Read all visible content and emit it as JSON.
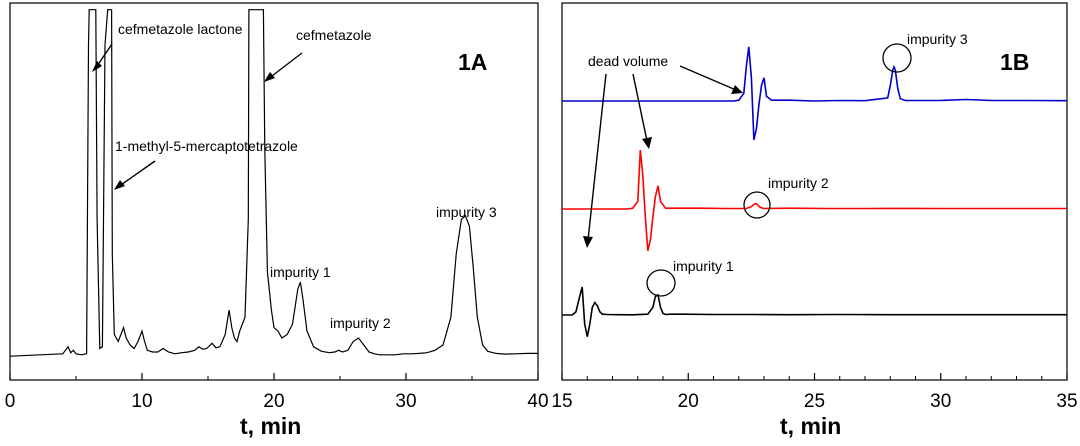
{
  "chart_data": [
    {
      "type": "line",
      "panel": "1A",
      "title": "1A",
      "xlabel": "t, min",
      "ylabel": "",
      "xlim": [
        0,
        40
      ],
      "xticks": [
        "0",
        "10",
        "20",
        "30",
        "40"
      ],
      "series": [
        {
          "name": "chromatogram 1A",
          "color": "#000000",
          "x": [
            0,
            4.0,
            4.4,
            4.6,
            4.8,
            5.0,
            5.4,
            5.8,
            5.95,
            6.0,
            6.5,
            6.6,
            6.8,
            7.0,
            7.2,
            7.4,
            7.45,
            7.5,
            7.6,
            7.7,
            7.75,
            7.9,
            8.2,
            8.4,
            8.6,
            8.8,
            9.1,
            9.4,
            9.7,
            10.0,
            10.2,
            10.4,
            10.8,
            11.2,
            11.6,
            12.0,
            12.5,
            13.0,
            13.5,
            14.0,
            14.3,
            14.6,
            14.9,
            15.3,
            15.6,
            15.9,
            16.3,
            16.6,
            16.8,
            17.0,
            17.2,
            17.4,
            17.8,
            18.05,
            18.1,
            18.2,
            19.0,
            19.2,
            19.3,
            19.5,
            19.8,
            20.0,
            20.3,
            20.6,
            21.0,
            21.4,
            21.8,
            22.0,
            22.2,
            22.5,
            23.0,
            23.6,
            24.2,
            24.6,
            24.9,
            25.2,
            25.6,
            26.0,
            26.4,
            26.8,
            27.2,
            27.6,
            28.0,
            28.6,
            29.2,
            29.8,
            30.4,
            31.0,
            31.6,
            32.2,
            32.8,
            33.4,
            33.8,
            34.2,
            34.5,
            34.8,
            35.1,
            35.4,
            35.8,
            36.2,
            36.8,
            37.5,
            38.3,
            39.2,
            40.0
          ],
          "values": [
            0.8,
            1.5,
            3.5,
            1.8,
            2.5,
            1.5,
            1.2,
            1.5,
            90,
            100,
            100,
            40,
            3,
            3.5,
            90,
            100,
            100,
            100,
            100,
            100,
            30,
            7,
            5,
            7,
            9,
            6,
            4,
            3,
            5,
            8,
            5,
            2.5,
            2,
            2,
            3,
            2,
            1.5,
            1.8,
            2,
            2.5,
            3.5,
            2.8,
            3,
            4.5,
            3.2,
            3.5,
            7,
            14,
            9,
            6,
            5,
            8,
            12,
            40,
            100,
            100,
            100,
            100,
            60,
            25,
            14,
            9,
            8,
            6,
            7,
            10,
            20,
            22,
            17,
            8,
            3.5,
            2.2,
            1.8,
            2,
            2.5,
            2,
            2.5,
            5,
            6,
            4,
            2,
            1.5,
            1.2,
            1.2,
            1.2,
            1.5,
            1.5,
            1.6,
            1.8,
            2.5,
            4,
            12,
            30,
            40,
            41,
            38,
            26,
            12,
            4,
            2.2,
            1.6,
            1.4,
            1.5,
            1.6,
            1.6
          ]
        }
      ],
      "annotations": [
        {
          "text": "cefmetazole lactone",
          "x": 6.0
        },
        {
          "text": "1-methyl-5-mercaptotetrazole",
          "x": 7.5
        },
        {
          "text": "cefmetazole",
          "x": 19.0
        },
        {
          "text": "impurity 1",
          "x": 21.8
        },
        {
          "text": "impurity 2",
          "x": 26.0
        },
        {
          "text": "impurity 3",
          "x": 34.8
        }
      ]
    },
    {
      "type": "line",
      "panel": "1B",
      "title": "1B",
      "xlabel": "t, min",
      "ylabel": "",
      "xlim": [
        15,
        35
      ],
      "xticks": [
        "15",
        "20",
        "25",
        "30",
        "35"
      ],
      "series": [
        {
          "name": "blue trace",
          "color": "#0000cc",
          "offset": 70,
          "x": [
            15.0,
            21.8,
            22.0,
            22.2,
            22.3,
            22.4,
            22.5,
            22.6,
            22.7,
            22.8,
            22.9,
            23.0,
            23.1,
            23.3,
            24.0,
            25.0,
            26.0,
            27.0,
            27.9,
            28.0,
            28.1,
            28.15,
            28.2,
            28.3,
            28.4,
            28.6,
            30.0,
            31.0,
            32.0,
            33.5,
            35.0
          ],
          "values": [
            0,
            0,
            0.5,
            5,
            22,
            35,
            15,
            -25,
            -18,
            -2,
            10,
            15,
            3,
            0.5,
            0.5,
            0,
            0.3,
            0.2,
            2,
            10,
            20,
            22,
            20,
            8,
            1.5,
            0.3,
            0.4,
            1,
            0.3,
            0.3,
            0.2
          ]
        },
        {
          "name": "red trace",
          "color": "#ff0000",
          "offset": 38,
          "x": [
            15.0,
            17.6,
            17.8,
            18.0,
            18.1,
            18.2,
            18.3,
            18.4,
            18.5,
            18.6,
            18.7,
            18.8,
            18.9,
            19.1,
            19.5,
            20.5,
            21.5,
            22.3,
            22.5,
            22.6,
            22.7,
            22.85,
            23.0,
            24.0,
            25.5,
            27.0,
            28.5,
            30.0,
            32.0,
            35.0
          ],
          "values": [
            0,
            0,
            0.5,
            5,
            38,
            22,
            -5,
            -27,
            -20,
            -5,
            8,
            15,
            5,
            0.5,
            0.5,
            0.5,
            0.3,
            0.3,
            1.5,
            3,
            3.5,
            1,
            0.3,
            0.5,
            0.3,
            0.3,
            0.4,
            0.3,
            0.3,
            0.3
          ]
        },
        {
          "name": "black trace",
          "color": "#000000",
          "offset": 7,
          "x": [
            15.0,
            15.2,
            15.4,
            15.55,
            15.7,
            15.8,
            15.9,
            16.0,
            16.1,
            16.2,
            16.3,
            16.4,
            16.5,
            16.6,
            16.8,
            17.2,
            17.8,
            18.4,
            18.6,
            18.7,
            18.8,
            18.9,
            19.0,
            19.1,
            19.3,
            19.8,
            21.0,
            22.5,
            24.0,
            26.0,
            28.0,
            30.0,
            32.0,
            35.0
          ],
          "values": [
            0,
            0,
            0,
            2,
            12,
            18,
            -6,
            -14,
            -6,
            5,
            8,
            6,
            2,
            0.5,
            0.3,
            0.2,
            0.1,
            0.5,
            5,
            12,
            13,
            5,
            1,
            0.3,
            0.5,
            0.5,
            0.3,
            0.3,
            0.2,
            0.3,
            0.2,
            0.2,
            0.2,
            0.2
          ]
        }
      ],
      "annotations": [
        {
          "text": "dead volume",
          "x": 15.9
        },
        {
          "text": "impurity 1",
          "x": 18.8
        },
        {
          "text": "impurity 2",
          "x": 22.8
        },
        {
          "text": "impurity 3",
          "x": 28.2
        }
      ]
    }
  ]
}
